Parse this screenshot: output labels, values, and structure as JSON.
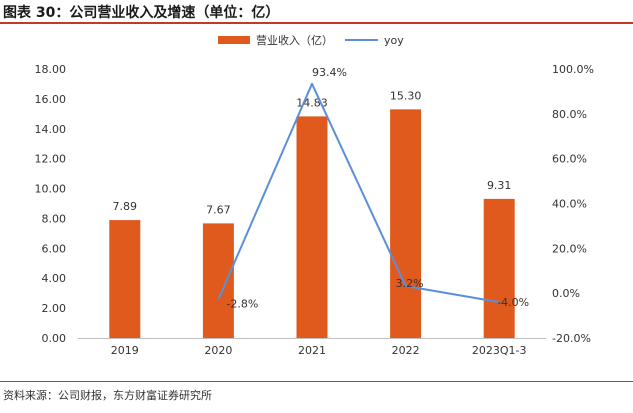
{
  "figure": {
    "title": "图表 30：公司营业收入及增速（单位：亿）",
    "source": "资料来源：公司财报，东方财富证券研究所"
  },
  "colors": {
    "bar": "#e05a1e",
    "line": "#5b8fd8",
    "accent_rule": "#c0392b"
  },
  "chart_data": {
    "type": "bar",
    "categories": [
      "2019",
      "2020",
      "2021",
      "2022",
      "2023Q1-3"
    ],
    "series": [
      {
        "name": "营业收入（亿）",
        "type": "bar",
        "axis": "left",
        "values": [
          7.89,
          7.67,
          14.83,
          15.3,
          9.31
        ],
        "labels": [
          "7.89",
          "7.67",
          "14.83",
          "15.30",
          "9.31"
        ]
      },
      {
        "name": "yoy",
        "type": "line",
        "axis": "right",
        "values": [
          null,
          -2.8,
          93.4,
          3.2,
          -4.0
        ],
        "labels": [
          "",
          "-2.8%",
          "93.4%",
          "3.2%",
          "-4.0%"
        ]
      }
    ],
    "y_left": {
      "min": 0,
      "max": 18,
      "step": 2,
      "ticks": [
        "0.00",
        "2.00",
        "4.00",
        "6.00",
        "8.00",
        "10.00",
        "12.00",
        "14.00",
        "16.00",
        "18.00"
      ]
    },
    "y_right": {
      "min": -20,
      "max": 100,
      "step": 20,
      "ticks": [
        "-20.0%",
        "0.0%",
        "20.0%",
        "40.0%",
        "60.0%",
        "80.0%",
        "100.0%"
      ]
    },
    "legend_position": "top-center",
    "grid": false
  }
}
